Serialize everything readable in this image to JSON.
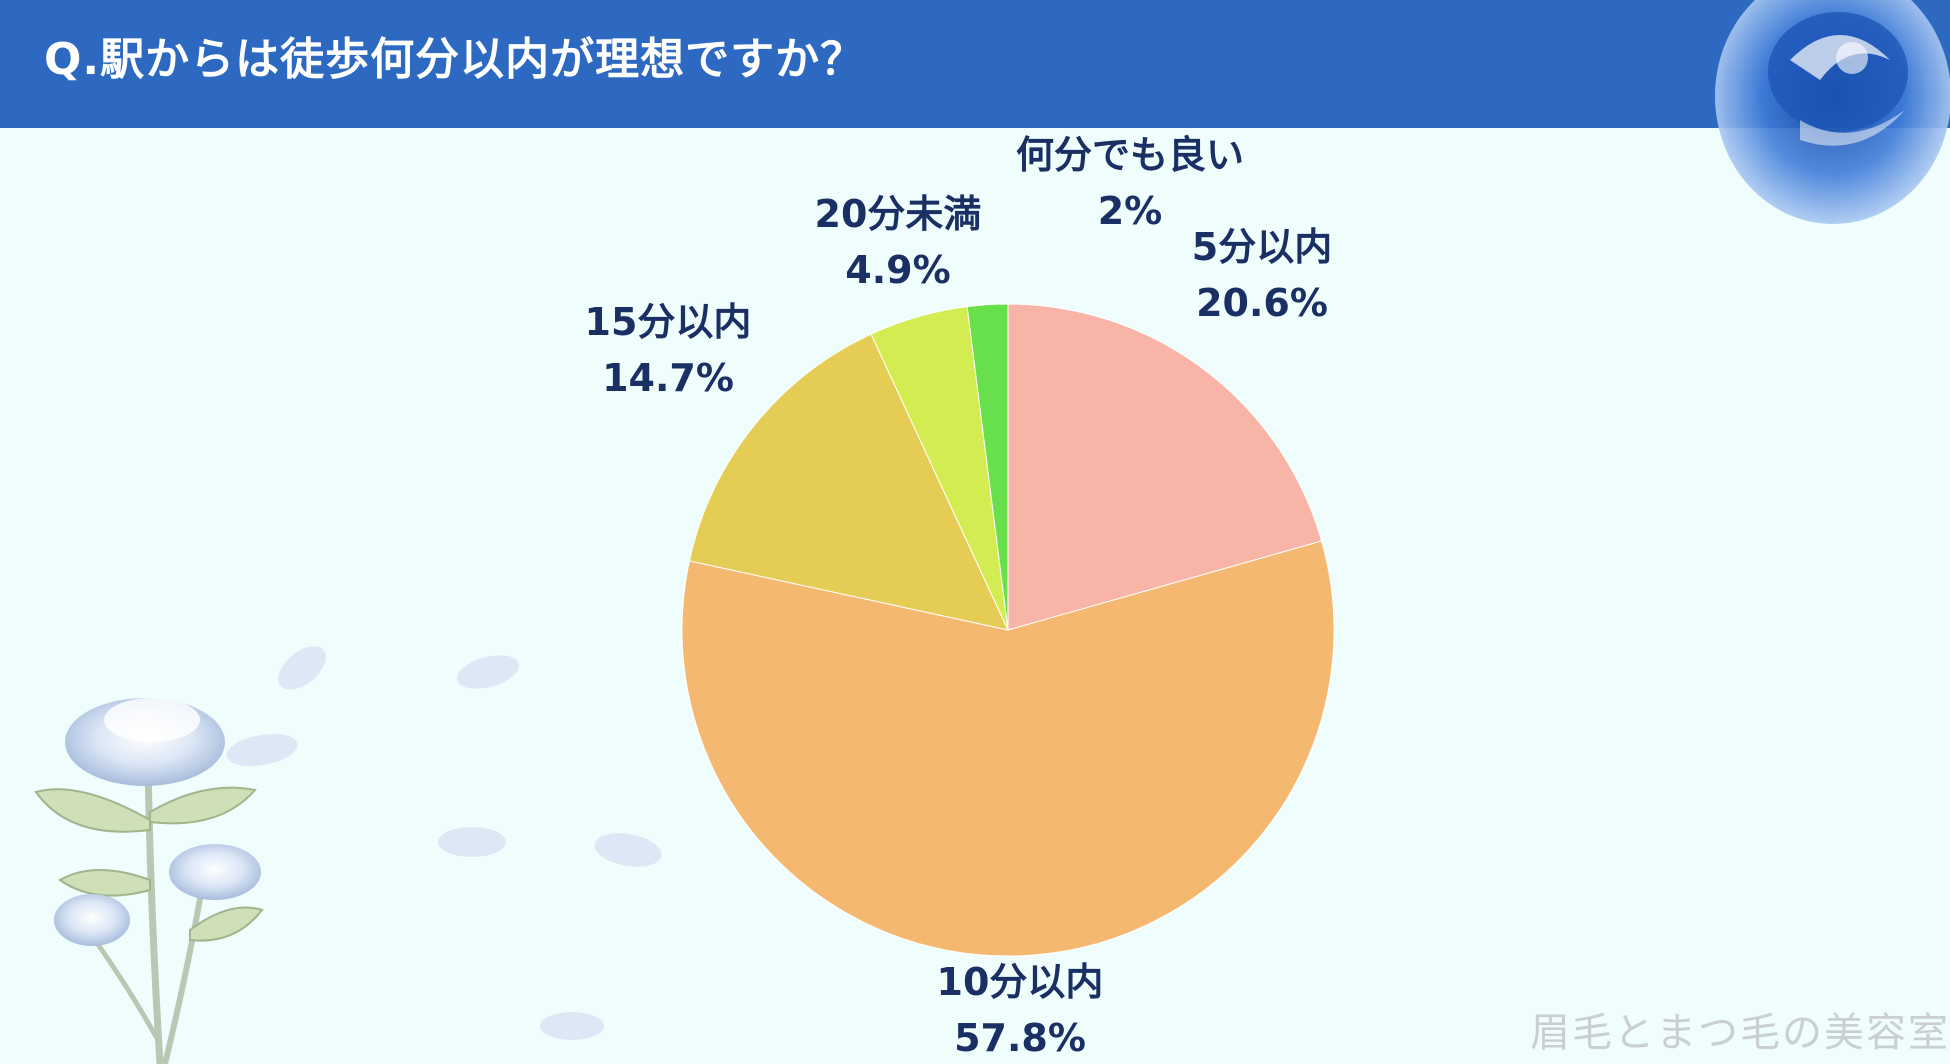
{
  "header": {
    "title": "Q.駅からは徒歩何分以内が理想ですか？"
  },
  "chart_data": {
    "type": "pie",
    "title": "Q.駅からは徒歩何分以内が理想ですか？",
    "slices": [
      {
        "label": "5分以内",
        "value": 20.6,
        "value_label": "20.6%",
        "color": "#f8b4a6"
      },
      {
        "label": "10分以内",
        "value": 57.8,
        "value_label": "57.8%",
        "color": "#f5b870"
      },
      {
        "label": "15分以内",
        "value": 14.7,
        "value_label": "14.7%",
        "color": "#e5cd55"
      },
      {
        "label": "20分未満",
        "value": 4.9,
        "value_label": "4.9%",
        "color": "#d3ec52"
      },
      {
        "label": "何分でも良い",
        "value": 2,
        "value_label": "2%",
        "color": "#68e04c"
      }
    ],
    "start": "12 o'clock",
    "direction": "clockwise"
  },
  "footer": {
    "watermark": "眉毛とまつ毛の美容室"
  },
  "colors": {
    "header_bg": "#2d69c0",
    "page_bg": "#effdfd",
    "label_text": "#1a2f63"
  },
  "decorations": {
    "top_right": "blue-rose-icon",
    "bottom_left": "blue-rose-stems-icon",
    "petals": "petal-icon"
  }
}
